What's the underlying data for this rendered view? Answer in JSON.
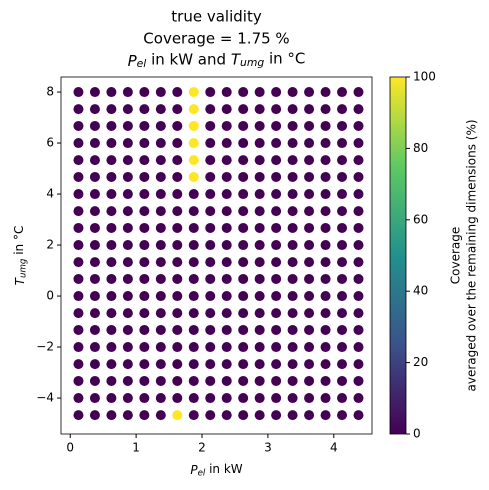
{
  "chart_data": {
    "type": "scatter",
    "title": [
      "true validity",
      "Coverage = 1.75 %",
      [
        {
          "text": "P",
          "italic": true
        },
        {
          "text": "el",
          "sub": true,
          "italic": true
        },
        {
          "text": " in kW and "
        },
        {
          "text": "T",
          "italic": true
        },
        {
          "text": "umg",
          "sub": true,
          "italic": true
        },
        {
          "text": " in °C"
        }
      ]
    ],
    "xlabel": [
      {
        "text": "P",
        "italic": true
      },
      {
        "text": "el",
        "sub": true,
        "italic": true
      },
      {
        "text": " in kW"
      }
    ],
    "ylabel": [
      {
        "text": "T",
        "italic": true
      },
      {
        "text": "umg",
        "sub": true,
        "italic": true
      },
      {
        "text": " in °C"
      }
    ],
    "colorbar_label": [
      "Coverage",
      "averaged over the remaining dimensions (%)"
    ],
    "x": [
      0.125,
      0.375,
      0.625,
      0.875,
      1.125,
      1.375,
      1.625,
      1.875,
      2.125,
      2.375,
      2.625,
      2.875,
      3.125,
      3.375,
      3.625,
      3.875,
      4.125,
      4.375
    ],
    "y": [
      8,
      7.33,
      6.67,
      6,
      5.33,
      4.67,
      4,
      3.33,
      2.67,
      2,
      1.33,
      0.67,
      0,
      -0.67,
      -1.33,
      -2,
      -2.67,
      -3.33,
      -4,
      -4.67
    ],
    "values": [
      [
        0,
        0,
        0,
        0,
        0,
        0,
        0,
        100,
        0,
        0,
        0,
        0,
        0,
        0,
        0,
        0,
        0,
        0
      ],
      [
        0,
        0,
        0,
        0,
        0,
        0,
        0,
        100,
        0,
        0,
        0,
        0,
        0,
        0,
        0,
        0,
        0,
        0
      ],
      [
        0,
        0,
        0,
        0,
        0,
        0,
        0,
        100,
        0,
        0,
        0,
        0,
        0,
        0,
        0,
        0,
        0,
        0
      ],
      [
        0,
        0,
        0,
        0,
        0,
        0,
        0,
        100,
        0,
        0,
        0,
        0,
        0,
        0,
        0,
        0,
        0,
        0
      ],
      [
        0,
        0,
        0,
        0,
        0,
        0,
        0,
        100,
        0,
        0,
        0,
        0,
        0,
        0,
        0,
        0,
        0,
        0
      ],
      [
        0,
        0,
        0,
        0,
        0,
        0,
        0,
        100,
        0,
        0,
        0,
        0,
        0,
        0,
        0,
        0,
        0,
        0
      ],
      [
        0,
        0,
        0,
        0,
        0,
        0,
        0,
        0,
        0,
        0,
        0,
        0,
        0,
        0,
        0,
        0,
        0,
        0
      ],
      [
        0,
        0,
        0,
        0,
        0,
        0,
        0,
        0,
        0,
        0,
        0,
        0,
        0,
        0,
        0,
        0,
        0,
        0
      ],
      [
        0,
        0,
        0,
        0,
        0,
        0,
        0,
        0,
        0,
        0,
        0,
        0,
        0,
        0,
        0,
        0,
        0,
        0
      ],
      [
        0,
        0,
        0,
        0,
        0,
        0,
        0,
        0,
        0,
        0,
        0,
        0,
        0,
        0,
        0,
        0,
        0,
        0
      ],
      [
        0,
        0,
        0,
        0,
        0,
        0,
        0,
        0,
        0,
        0,
        0,
        0,
        0,
        0,
        0,
        0,
        0,
        0
      ],
      [
        0,
        0,
        0,
        0,
        0,
        0,
        0,
        0,
        0,
        0,
        0,
        0,
        0,
        0,
        0,
        0,
        0,
        0
      ],
      [
        0,
        0,
        0,
        0,
        0,
        0,
        0,
        0,
        0,
        0,
        0,
        0,
        0,
        0,
        0,
        0,
        0,
        0
      ],
      [
        0,
        0,
        0,
        0,
        0,
        0,
        0,
        0,
        0,
        0,
        0,
        0,
        0,
        0,
        0,
        0,
        0,
        0
      ],
      [
        0,
        0,
        0,
        0,
        0,
        0,
        0,
        0,
        0,
        0,
        0,
        0,
        0,
        0,
        0,
        0,
        0,
        0
      ],
      [
        0,
        0,
        0,
        0,
        0,
        0,
        0,
        0,
        0,
        0,
        0,
        0,
        0,
        0,
        0,
        0,
        0,
        0
      ],
      [
        0,
        0,
        0,
        0,
        0,
        0,
        0,
        0,
        0,
        0,
        0,
        0,
        0,
        0,
        0,
        0,
        0,
        0
      ],
      [
        0,
        0,
        0,
        0,
        0,
        0,
        0,
        0,
        0,
        0,
        0,
        0,
        0,
        0,
        0,
        0,
        0,
        0
      ],
      [
        0,
        0,
        0,
        0,
        0,
        0,
        0,
        0,
        0,
        0,
        0,
        0,
        0,
        0,
        0,
        0,
        0,
        0
      ],
      [
        0,
        0,
        0,
        0,
        0,
        0,
        100,
        0,
        0,
        0,
        0,
        0,
        0,
        0,
        0,
        0,
        0,
        0
      ]
    ],
    "colormap": [
      "#440154",
      "#3b528b",
      "#21918c",
      "#5ec962",
      "#fde725"
    ],
    "clim": [
      0,
      100
    ],
    "cticks": [
      0,
      20,
      40,
      60,
      80,
      100
    ],
    "xlim": [
      -0.14,
      4.58
    ],
    "ylim": [
      -5.41,
      8.59
    ],
    "xticks": [
      0,
      1,
      2,
      3,
      4
    ],
    "yticks": [
      {
        "value": -4,
        "label": "−4"
      },
      {
        "value": -2,
        "label": "−2"
      },
      0,
      2,
      4,
      6,
      8
    ]
  }
}
